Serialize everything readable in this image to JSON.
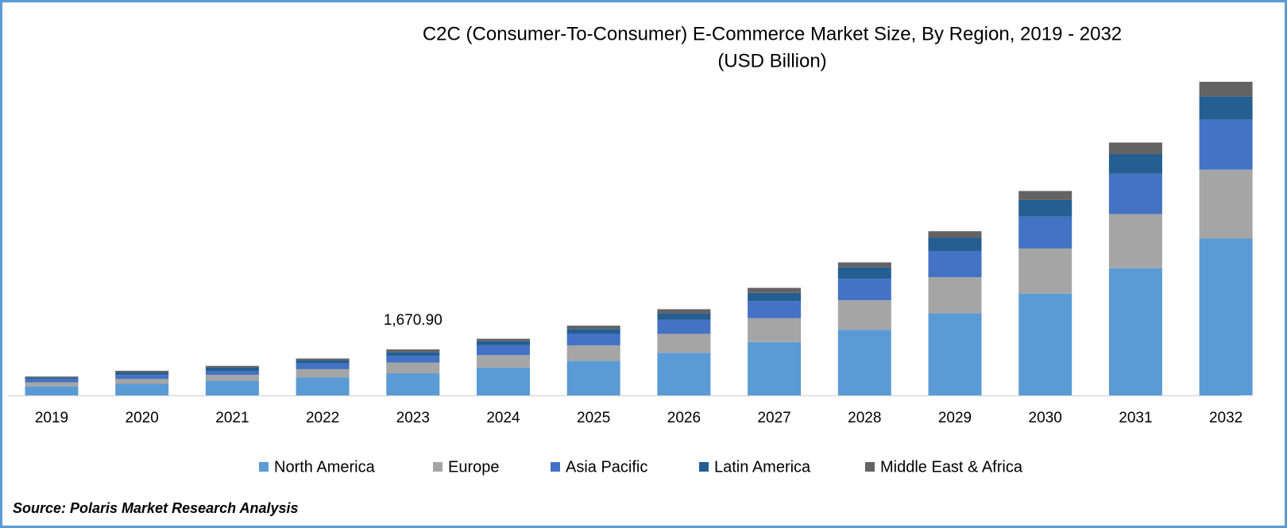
{
  "chart_data": {
    "type": "stacked_bar",
    "title": "C2C (Consumer-To-Consumer)  E-Commerce Market Size, By Region, 2019 - 2032",
    "subtitle": "(USD Billion)",
    "source": "Source: Polaris Market Research Analysis",
    "categories": [
      "2019",
      "2020",
      "2021",
      "2022",
      "2023",
      "2024",
      "2025",
      "2026",
      "2027",
      "2028",
      "2029",
      "2030",
      "2031",
      "2032"
    ],
    "series": [
      {
        "name": "North America",
        "color": "#5b9bd5",
        "values": [
          328,
          418,
          537,
          656,
          805.7,
          1015,
          1253,
          1552,
          1940,
          2387,
          2984,
          3700,
          4625,
          5699
        ]
      },
      {
        "name": "Europe",
        "color": "#a5a5a5",
        "values": [
          149,
          179,
          209,
          298,
          388,
          448,
          567,
          686,
          865,
          1074,
          1313,
          1641,
          1969,
          2507
        ]
      },
      {
        "name": "Asia Pacific",
        "color": "#4472c4",
        "values": [
          119,
          149,
          149,
          209,
          238.7,
          358,
          418,
          507,
          627,
          776,
          955,
          1164,
          1462,
          1820
        ]
      },
      {
        "name": "Latin America",
        "color": "#255e91",
        "values": [
          60,
          90,
          119,
          119,
          149.2,
          149,
          179,
          239,
          298,
          418,
          477,
          597,
          716,
          836
        ]
      },
      {
        "name": "Middle East & Africa",
        "color": "#636363",
        "values": [
          30,
          60,
          60,
          60,
          89.3,
          90,
          119,
          149,
          179,
          179,
          239,
          328,
          418,
          537
        ]
      }
    ],
    "total_label": {
      "category": "2023",
      "value": 1670.9,
      "label": "1,670.90"
    }
  }
}
